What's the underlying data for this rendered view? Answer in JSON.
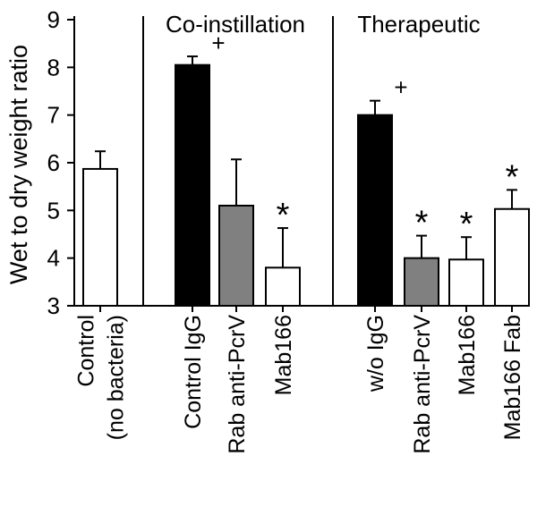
{
  "chart_data": {
    "type": "bar",
    "title": "",
    "xlabel": "",
    "ylabel": "Wet to dry weight ratio",
    "ylim": [
      3,
      9
    ],
    "yticks": [
      3,
      4,
      5,
      6,
      7,
      8,
      9
    ],
    "grid": false,
    "groups": [
      {
        "label": "",
        "bars": [
          0
        ]
      },
      {
        "label": "Co-instillation",
        "bars": [
          1,
          2,
          3
        ]
      },
      {
        "label": "Therapeutic",
        "bars": [
          4,
          5,
          6,
          7
        ]
      }
    ],
    "bars": [
      {
        "lines": [
          "Control",
          "(no bacteria)"
        ],
        "value": 5.87,
        "error": 0.37,
        "fill": "#ffffff",
        "marker": ""
      },
      {
        "lines": [
          "Control IgG"
        ],
        "value": 8.05,
        "error": 0.18,
        "fill": "#000000",
        "marker": "+"
      },
      {
        "lines": [
          "Rab anti-PcrV"
        ],
        "value": 5.1,
        "error": 0.97,
        "fill": "#808080",
        "marker": ""
      },
      {
        "lines": [
          "Mab166"
        ],
        "value": 3.8,
        "error": 0.83,
        "fill": "#ffffff",
        "marker": "*"
      },
      {
        "lines": [
          "w/o IgG"
        ],
        "value": 7.0,
        "error": 0.3,
        "fill": "#000000",
        "marker": "+"
      },
      {
        "lines": [
          "Rab anti-PcrV"
        ],
        "value": 4.0,
        "error": 0.47,
        "fill": "#808080",
        "marker": "*"
      },
      {
        "lines": [
          "Mab166"
        ],
        "value": 3.97,
        "error": 0.47,
        "fill": "#ffffff",
        "marker": "*"
      },
      {
        "lines": [
          "Mab166 Fab"
        ],
        "value": 5.03,
        "error": 0.4,
        "fill": "#ffffff",
        "marker": "*"
      }
    ]
  }
}
